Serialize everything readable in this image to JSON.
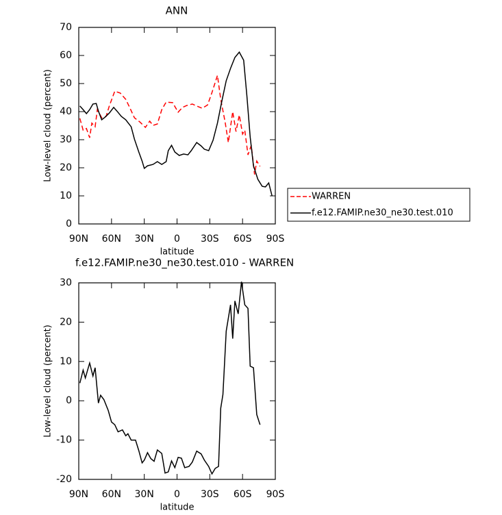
{
  "chart_data": [
    {
      "type": "line",
      "title": "ANN",
      "xlabel": "latitude",
      "ylabel": "Low-level cloud (percent)",
      "xlim": [
        90,
        -90
      ],
      "ylim": [
        0,
        70
      ],
      "xticks": [
        {
          "value": 90,
          "label": "90N"
        },
        {
          "value": 60,
          "label": "60N"
        },
        {
          "value": 30,
          "label": "30N"
        },
        0,
        {
          "value": -30,
          "label": "30S"
        },
        {
          "value": -60,
          "label": "60S"
        },
        {
          "value": -90,
          "label": "90S"
        }
      ],
      "yticks": [
        0,
        10,
        20,
        30,
        40,
        50,
        60,
        70
      ],
      "legend": "right",
      "series": [
        {
          "name": "WARREN",
          "color": "#ff0000",
          "dashed": true,
          "x": [
            89,
            86,
            83,
            80,
            78,
            75,
            73,
            69,
            65,
            62,
            57,
            52,
            47,
            43,
            39,
            34,
            29,
            25,
            22,
            18,
            14,
            10,
            4,
            -1,
            -5,
            -9,
            -14,
            -18,
            -23,
            -28,
            -32,
            -37,
            -40,
            -44,
            -47,
            -51,
            -54,
            -57,
            -60,
            -62,
            -65,
            -68,
            -71,
            -73,
            -76
          ],
          "values": [
            37.6,
            33.4,
            34,
            30.7,
            35.9,
            34.6,
            40.7,
            37.8,
            38.3,
            42,
            47.3,
            46.6,
            44.4,
            41.2,
            37.8,
            36.3,
            34.4,
            36.6,
            35.1,
            35.6,
            40.7,
            43.4,
            43.2,
            39.8,
            41.5,
            42.2,
            42.7,
            42,
            41.2,
            42.4,
            46.8,
            52.9,
            44.4,
            36.3,
            29,
            40,
            32.9,
            38.8,
            32,
            33.4,
            24.6,
            28,
            17.6,
            22.4,
            20.5
          ]
        },
        {
          "name": "f.e12.FAMIP.ne30_ne30.test.010",
          "color": "#000000",
          "dashed": false,
          "x": [
            89,
            86,
            83,
            80,
            77,
            74,
            72,
            69,
            66,
            62,
            58,
            55,
            51,
            47,
            42,
            39,
            35,
            32,
            30,
            27,
            22,
            18,
            14,
            10,
            8,
            5,
            2,
            -2,
            -6,
            -10,
            -13,
            -18,
            -22,
            -25,
            -29,
            -33,
            -37,
            -41,
            -45,
            -49,
            -53,
            -57,
            -61,
            -64,
            -67,
            -70,
            -74,
            -78,
            -81,
            -84,
            -87
          ],
          "values": [
            42,
            40.7,
            39.3,
            40.7,
            42.7,
            42.9,
            40.2,
            37.1,
            38,
            39.5,
            41.5,
            40.2,
            38.3,
            37.1,
            34.6,
            30.2,
            25.6,
            22.4,
            19.8,
            20.7,
            21.2,
            22.2,
            21.2,
            22.2,
            26.1,
            28,
            25.6,
            24.4,
            24.9,
            24.6,
            26.1,
            29,
            27.8,
            26.6,
            26.1,
            29.8,
            35.9,
            43.7,
            51,
            55.4,
            59.3,
            61.2,
            58.3,
            45.6,
            31,
            20.7,
            15.9,
            13.4,
            13.2,
            14.6,
            10
          ]
        }
      ]
    },
    {
      "type": "line",
      "title": "f.e12.FAMIP.ne30_ne30.test.010 - WARREN",
      "xlabel": "latitude",
      "ylabel": "Low-level cloud (percent)",
      "xlim": [
        90,
        -90
      ],
      "ylim": [
        -20,
        30
      ],
      "xticks": [
        {
          "value": 90,
          "label": "90N"
        },
        {
          "value": 60,
          "label": "60N"
        },
        {
          "value": 30,
          "label": "30N"
        },
        0,
        {
          "value": -30,
          "label": "30S"
        },
        {
          "value": -60,
          "label": "60S"
        },
        {
          "value": -90,
          "label": "90S"
        }
      ],
      "yticks": [
        -20,
        -10,
        0,
        10,
        20,
        30
      ],
      "series": [
        {
          "color": "#000000",
          "dashed": false,
          "x": [
            89,
            86,
            84,
            80,
            77,
            75,
            72,
            70,
            67,
            63,
            60,
            57,
            54,
            50,
            47,
            45,
            42,
            38,
            35,
            32,
            30,
            27,
            24,
            21,
            18,
            14,
            11,
            8,
            5,
            2,
            -1,
            -4,
            -7,
            -11,
            -14,
            -18,
            -22,
            -25,
            -29,
            -32,
            -35,
            -38,
            -40,
            -42,
            -45,
            -49,
            -51,
            -53,
            -56,
            -59,
            -62,
            -65,
            -67,
            -70,
            -73,
            -76
          ],
          "values": [
            4.5,
            7.8,
            5.8,
            9.6,
            6.3,
            8.4,
            -0.6,
            1.4,
            0.3,
            -2.5,
            -5.4,
            -6.1,
            -7.9,
            -7.4,
            -8.9,
            -8.4,
            -10,
            -10,
            -12.7,
            -15.8,
            -15.1,
            -13.2,
            -14.7,
            -15.4,
            -12.5,
            -13.4,
            -18.4,
            -18.1,
            -15.3,
            -17,
            -14.4,
            -14.6,
            -17,
            -16.7,
            -15.6,
            -12.8,
            -13.5,
            -15.1,
            -16.7,
            -18.6,
            -17.2,
            -16.7,
            -1.9,
            1.6,
            17.7,
            24.4,
            15.8,
            25.4,
            22.1,
            30.3,
            24.4,
            23.5,
            8.8,
            8.4,
            -3.5,
            -6.1
          ]
        }
      ]
    }
  ]
}
